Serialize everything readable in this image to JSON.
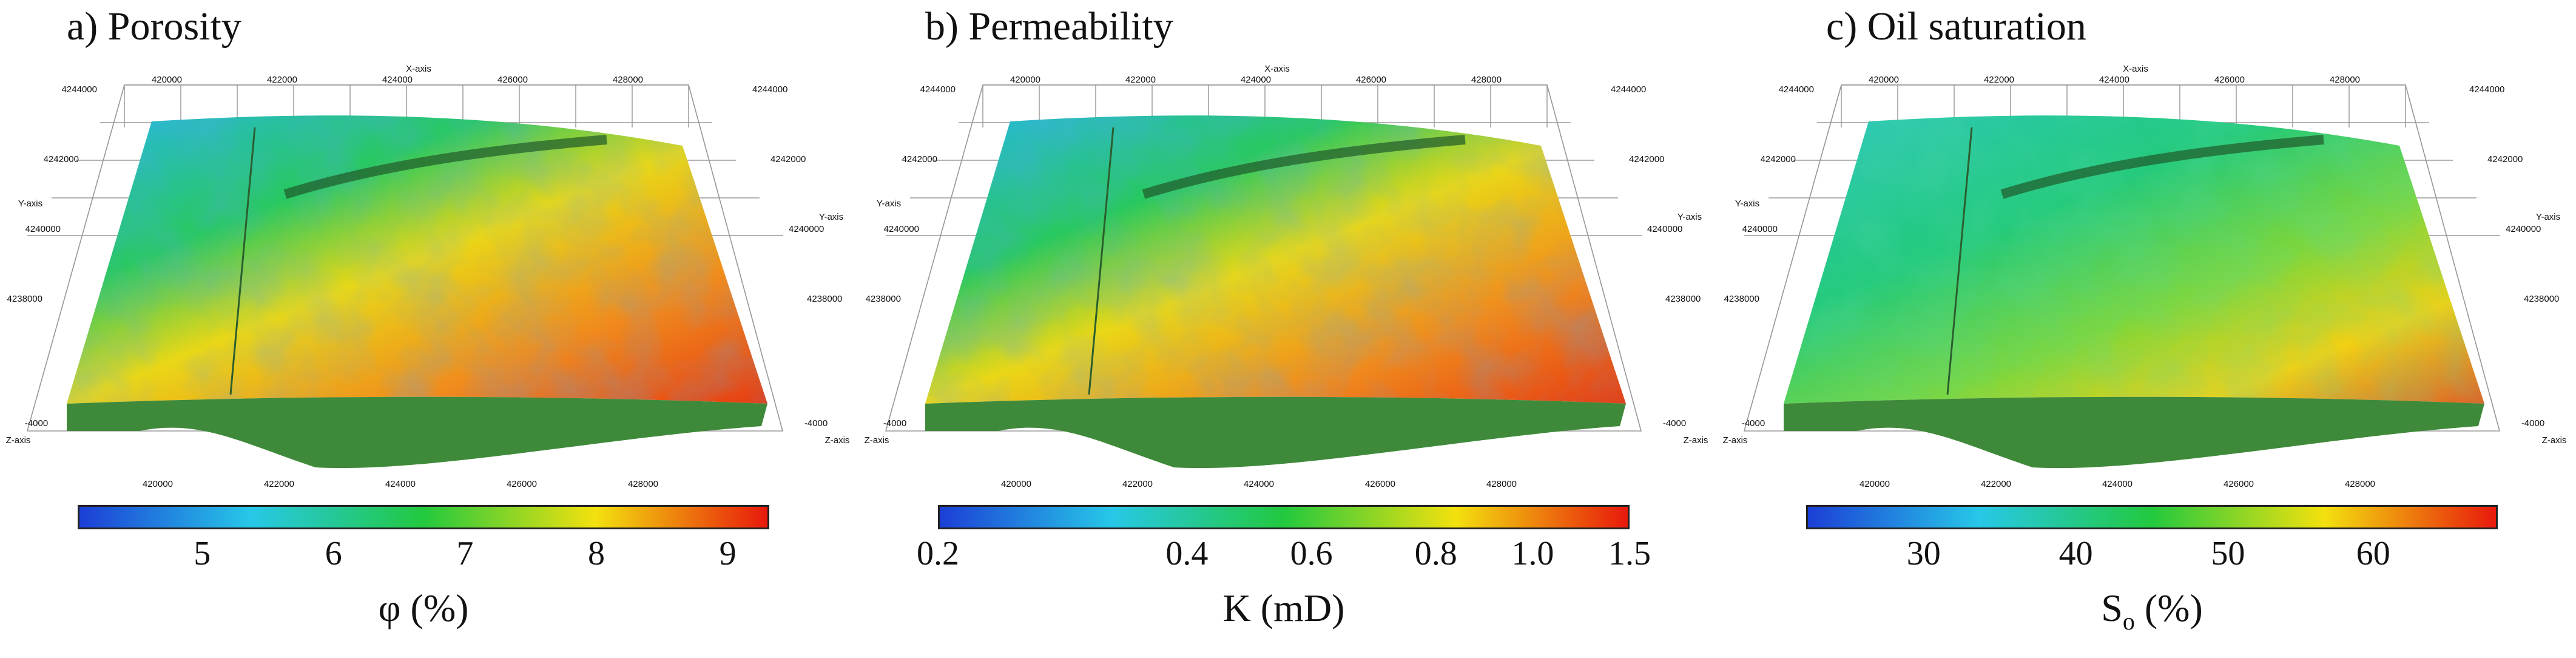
{
  "panels": [
    {
      "title": "a) Porosity",
      "colorbar": {
        "ticks": [
          "5",
          "6",
          "7",
          "8",
          "9"
        ],
        "label_symbol": "φ",
        "label_unit": "(%)"
      },
      "colors": [
        "#1c3fd6",
        "#27c8e8",
        "#22c93e",
        "#f3e10e",
        "#e8190c"
      ]
    },
    {
      "title": "b) Permeability",
      "colorbar": {
        "ticks": [
          "0.2",
          "0.4",
          "0.6",
          "0.8",
          "1.0",
          "1.5"
        ],
        "label_symbol": "K",
        "label_unit": "(mD)"
      },
      "colors": [
        "#1c3fd6",
        "#27c8e8",
        "#22c93e",
        "#f3e10e",
        "#e8190c"
      ]
    },
    {
      "title": "c) Oil saturation",
      "colorbar": {
        "ticks": [
          "30",
          "40",
          "50",
          "60"
        ],
        "label_symbol": "S",
        "label_sub": "o",
        "label_unit": "(%)"
      },
      "colors": [
        "#1c3fd6",
        "#27c8e8",
        "#22c93e",
        "#f3e10e",
        "#e8190c"
      ]
    }
  ],
  "axes": {
    "x_title": "X-axis",
    "y_title": "Y-axis",
    "z_title": "Z-axis",
    "x_ticks": [
      "420000",
      "422000",
      "424000",
      "426000",
      "428000"
    ],
    "y_ticks": [
      "4244000",
      "4242000",
      "4240000",
      "4238000"
    ],
    "z_tick": "-4000"
  }
}
